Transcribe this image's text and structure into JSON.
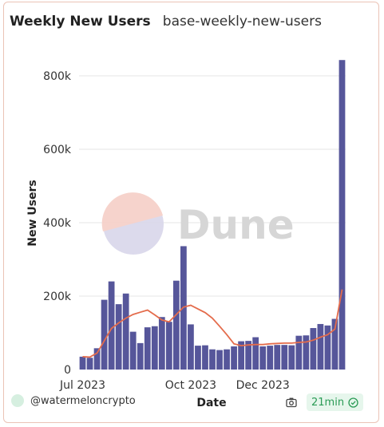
{
  "header": {
    "title": "Weekly New Users",
    "subtitle": "base-weekly-new-users"
  },
  "watermark": {
    "text": "Dune",
    "logo_colors": [
      "#f6cfc7",
      "#d9d7ea"
    ]
  },
  "footer": {
    "author": "@watermeloncrypto",
    "refresh": "21min",
    "camera_icon": "camera-icon",
    "status_icon": "check-circle-icon"
  },
  "colors": {
    "bar": "#56569a",
    "line": "#e46c4c",
    "grid": "#e6e6e6",
    "axis_text": "#333333"
  },
  "chart_data": {
    "type": "bar",
    "title": "",
    "xlabel": "Date",
    "ylabel": "New Users",
    "ylim": [
      0,
      850000
    ],
    "yticks": [
      0,
      200000,
      400000,
      600000,
      800000
    ],
    "ytick_labels": [
      "0",
      "200k",
      "400k",
      "600k",
      "800k"
    ],
    "xtick_labels": [
      "Jul 2023",
      "Oct 2023",
      "Dec 2023"
    ],
    "xtick_bar_index": [
      0,
      15,
      25
    ],
    "grid": true,
    "legend": "none",
    "series": [
      {
        "type": "bar",
        "values": [
          35000,
          32000,
          58000,
          190000,
          240000,
          178000,
          207000,
          103000,
          72000,
          115000,
          118000,
          143000,
          130000,
          242000,
          336000,
          123000,
          65000,
          66000,
          55000,
          53000,
          55000,
          63000,
          77000,
          78000,
          88000,
          63000,
          65000,
          67000,
          67000,
          66000,
          92000,
          93000,
          113000,
          124000,
          120000,
          138000,
          843000
        ]
      },
      {
        "type": "line",
        "values": [
          35000,
          34000,
          45000,
          78000,
          112000,
          127000,
          140000,
          150000,
          156000,
          162000,
          149000,
          135000,
          130000,
          150000,
          170000,
          175000,
          165000,
          155000,
          140000,
          118000,
          95000,
          70000,
          65000,
          67000,
          68000,
          68000,
          70000,
          71000,
          72000,
          72000,
          74000,
          75000,
          80000,
          88000,
          95000,
          110000,
          218000
        ]
      }
    ]
  }
}
